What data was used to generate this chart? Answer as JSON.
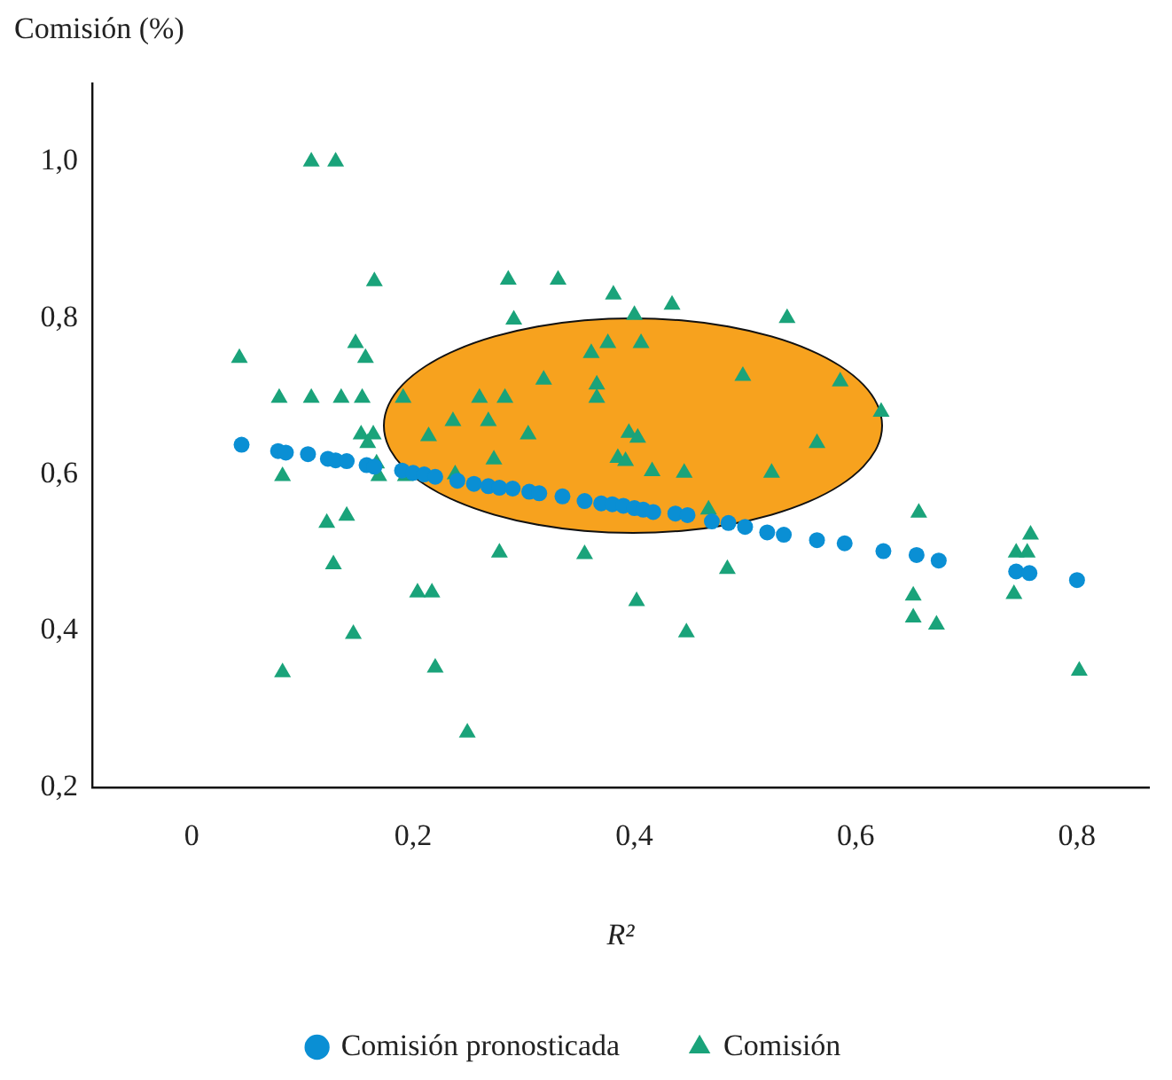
{
  "chart_data": {
    "type": "scatter",
    "xlabel": "R²",
    "ylabel": "Comisión (%)",
    "xlim": [
      -0.09,
      0.865
    ],
    "ylim": [
      0.2,
      1.1
    ],
    "xticks": [
      {
        "value": 0,
        "label": "0"
      },
      {
        "value": 0.2,
        "label": "0,2"
      },
      {
        "value": 0.4,
        "label": "0,4"
      },
      {
        "value": 0.6,
        "label": "0,6"
      },
      {
        "value": 0.8,
        "label": "0,8"
      }
    ],
    "yticks": [
      {
        "value": 0.2,
        "label": "0,2"
      },
      {
        "value": 0.4,
        "label": "0,4"
      },
      {
        "value": 0.6,
        "label": "0,6"
      },
      {
        "value": 0.8,
        "label": "0,8"
      },
      {
        "value": 1.0,
        "label": "1,0"
      }
    ],
    "grid": false,
    "legend": "bottom",
    "series": [
      {
        "name": "Comisión pronosticada",
        "color": "#0a8fd4",
        "marker": "circle",
        "x": [
          0.045,
          0.078,
          0.085,
          0.105,
          0.123,
          0.13,
          0.14,
          0.158,
          0.165,
          0.19,
          0.2,
          0.21,
          0.22,
          0.24,
          0.255,
          0.268,
          0.278,
          0.29,
          0.305,
          0.314,
          0.335,
          0.355,
          0.37,
          0.38,
          0.39,
          0.4,
          0.408,
          0.417,
          0.437,
          0.448,
          0.47,
          0.485,
          0.5,
          0.52,
          0.535,
          0.565,
          0.59,
          0.625,
          0.655,
          0.675,
          0.745,
          0.757,
          0.8
        ],
        "values": [
          0.638,
          0.63,
          0.628,
          0.626,
          0.62,
          0.618,
          0.617,
          0.612,
          0.61,
          0.605,
          0.602,
          0.6,
          0.597,
          0.592,
          0.588,
          0.585,
          0.583,
          0.582,
          0.578,
          0.576,
          0.572,
          0.566,
          0.563,
          0.562,
          0.56,
          0.557,
          0.555,
          0.552,
          0.55,
          0.548,
          0.54,
          0.538,
          0.533,
          0.526,
          0.523,
          0.516,
          0.512,
          0.502,
          0.497,
          0.49,
          0.476,
          0.474,
          0.465
        ]
      },
      {
        "name": "Comisión",
        "color": "#1aa37a",
        "marker": "triangle",
        "x": [
          0.043,
          0.079,
          0.082,
          0.082,
          0.108,
          0.13,
          0.108,
          0.122,
          0.128,
          0.135,
          0.14,
          0.146,
          0.148,
          0.157,
          0.165,
          0.154,
          0.153,
          0.159,
          0.164,
          0.167,
          0.169,
          0.191,
          0.193,
          0.204,
          0.217,
          0.214,
          0.22,
          0.236,
          0.238,
          0.249,
          0.26,
          0.268,
          0.273,
          0.278,
          0.283,
          0.286,
          0.291,
          0.304,
          0.318,
          0.331,
          0.355,
          0.361,
          0.366,
          0.366,
          0.376,
          0.381,
          0.385,
          0.392,
          0.395,
          0.4,
          0.403,
          0.406,
          0.416,
          0.402,
          0.434,
          0.445,
          0.447,
          0.467,
          0.484,
          0.498,
          0.524,
          0.538,
          0.565,
          0.586,
          0.623,
          0.657,
          0.652,
          0.652,
          0.673,
          0.758,
          0.745,
          0.755,
          0.743,
          0.802
        ],
        "values": [
          0.749,
          0.698,
          0.598,
          0.347,
          1.0,
          1.0,
          0.698,
          0.538,
          0.485,
          0.698,
          0.547,
          0.396,
          0.768,
          0.749,
          0.847,
          0.698,
          0.651,
          0.64,
          0.651,
          0.614,
          0.598,
          0.698,
          0.598,
          0.449,
          0.449,
          0.649,
          0.353,
          0.668,
          0.6,
          0.27,
          0.698,
          0.668,
          0.619,
          0.5,
          0.698,
          0.849,
          0.798,
          0.651,
          0.721,
          0.849,
          0.498,
          0.755,
          0.715,
          0.698,
          0.768,
          0.83,
          0.621,
          0.617,
          0.653,
          0.804,
          0.647,
          0.768,
          0.604,
          0.438,
          0.817,
          0.602,
          0.398,
          0.555,
          0.479,
          0.726,
          0.602,
          0.8,
          0.64,
          0.719,
          0.68,
          0.551,
          0.445,
          0.417,
          0.408,
          0.523,
          0.5,
          0.5,
          0.447,
          0.349
        ]
      }
    ]
  }
}
